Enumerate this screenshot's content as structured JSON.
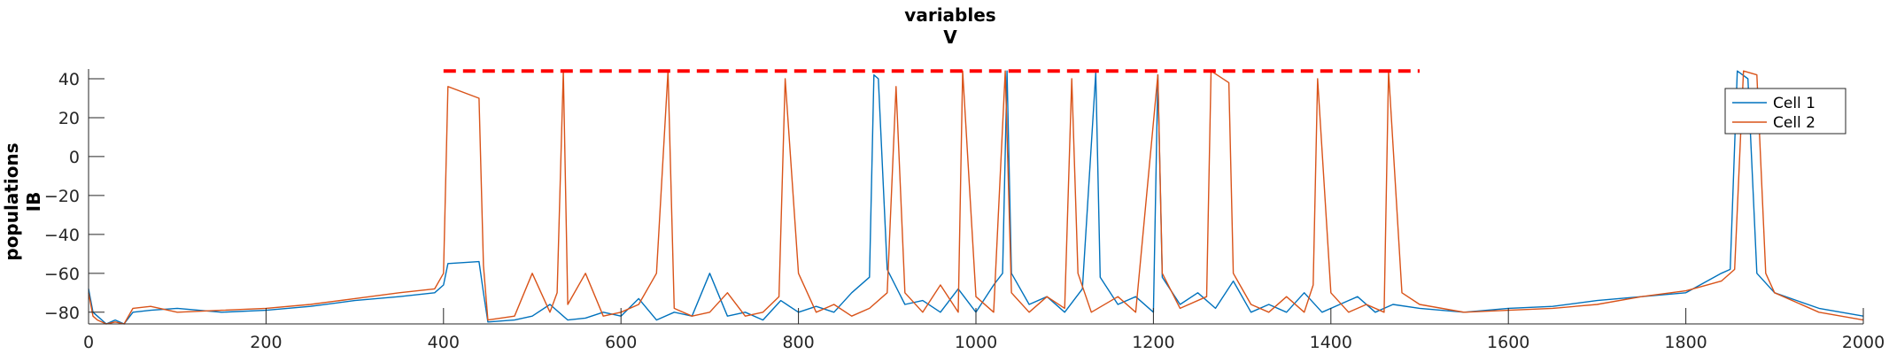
{
  "chart_data": {
    "type": "line",
    "title": [
      "variables",
      "V"
    ],
    "ylabel": [
      "populations",
      "IB"
    ],
    "xlabel": "",
    "xlim": [
      0,
      2000
    ],
    "ylim": [
      -86,
      45
    ],
    "xticks": [
      0,
      200,
      400,
      600,
      800,
      1000,
      1200,
      1400,
      1600,
      1800,
      2000
    ],
    "yticks": [
      -80,
      -60,
      -40,
      -20,
      0,
      20,
      40
    ],
    "ytick_labels": [
      "−80",
      "−60",
      "−40",
      "−20",
      "0",
      "20",
      "40"
    ],
    "legend_position": "top-right",
    "series": [
      {
        "name": "Cell 1",
        "color": "#0072BD",
        "x": [
          0,
          5,
          10,
          20,
          30,
          40,
          50,
          70,
          100,
          150,
          200,
          250,
          300,
          350,
          390,
          400,
          405,
          440,
          445,
          450,
          480,
          500,
          520,
          540,
          560,
          580,
          600,
          620,
          640,
          660,
          680,
          700,
          720,
          740,
          760,
          780,
          800,
          820,
          840,
          860,
          880,
          885,
          890,
          900,
          920,
          940,
          960,
          980,
          1000,
          1020,
          1030,
          1035,
          1040,
          1060,
          1080,
          1100,
          1120,
          1135,
          1140,
          1160,
          1180,
          1200,
          1205,
          1210,
          1230,
          1250,
          1270,
          1290,
          1310,
          1330,
          1350,
          1370,
          1390,
          1410,
          1430,
          1450,
          1470,
          1500,
          1550,
          1600,
          1650,
          1700,
          1750,
          1800,
          1840,
          1850,
          1858,
          1870,
          1880,
          1900,
          1950,
          2000
        ],
        "y": [
          -68,
          -80,
          -82,
          -86,
          -84,
          -86,
          -80,
          -79,
          -78,
          -80,
          -79,
          -77,
          -74,
          -72,
          -70,
          -66,
          -55,
          -54,
          -70,
          -85,
          -84,
          -82,
          -76,
          -84,
          -83,
          -80,
          -82,
          -73,
          -84,
          -80,
          -82,
          -60,
          -82,
          -80,
          -84,
          -74,
          -80,
          -77,
          -80,
          -70,
          -62,
          42,
          40,
          -58,
          -76,
          -74,
          -80,
          -68,
          -80,
          -66,
          -60,
          44,
          -60,
          -76,
          -72,
          -80,
          -68,
          43,
          -62,
          -76,
          -72,
          -80,
          42,
          -62,
          -76,
          -70,
          -78,
          -64,
          -80,
          -76,
          -80,
          -70,
          -80,
          -76,
          -72,
          -80,
          -76,
          -78,
          -80,
          -78,
          -77,
          -74,
          -72,
          -70,
          -60,
          -58,
          44,
          40,
          -60,
          -70,
          -78,
          -82
        ]
      },
      {
        "name": "Cell 2",
        "color": "#D95319",
        "x": [
          0,
          5,
          10,
          20,
          30,
          40,
          50,
          70,
          100,
          150,
          200,
          250,
          300,
          350,
          390,
          400,
          405,
          440,
          445,
          450,
          480,
          500,
          520,
          528,
          535,
          540,
          560,
          580,
          600,
          620,
          640,
          653,
          660,
          680,
          700,
          720,
          740,
          760,
          778,
          785,
          800,
          820,
          840,
          860,
          880,
          900,
          910,
          920,
          940,
          960,
          980,
          985,
          1000,
          1020,
          1033,
          1040,
          1060,
          1080,
          1100,
          1108,
          1115,
          1130,
          1160,
          1180,
          1205,
          1210,
          1230,
          1260,
          1265,
          1285,
          1290,
          1310,
          1330,
          1350,
          1370,
          1380,
          1385,
          1400,
          1420,
          1440,
          1460,
          1465,
          1480,
          1500,
          1550,
          1600,
          1650,
          1700,
          1750,
          1800,
          1840,
          1855,
          1865,
          1880,
          1890,
          1900,
          1950,
          2000
        ],
        "y": [
          -70,
          -82,
          -84,
          -86,
          -85,
          -86,
          -78,
          -77,
          -80,
          -79,
          -78,
          -76,
          -73,
          -70,
          -68,
          -60,
          36,
          30,
          -56,
          -84,
          -82,
          -60,
          -80,
          -70,
          44,
          -76,
          -60,
          -82,
          -80,
          -76,
          -60,
          44,
          -78,
          -82,
          -80,
          -70,
          -82,
          -80,
          -72,
          40,
          -60,
          -80,
          -76,
          -82,
          -78,
          -70,
          36,
          -70,
          -80,
          -66,
          -80,
          44,
          -72,
          -80,
          44,
          -70,
          -80,
          -72,
          -78,
          40,
          -60,
          -80,
          -72,
          -80,
          42,
          -60,
          -78,
          -72,
          44,
          38,
          -60,
          -76,
          -80,
          -72,
          -80,
          -66,
          40,
          -70,
          -80,
          -76,
          -80,
          44,
          -70,
          -76,
          -80,
          -79,
          -78,
          -76,
          -72,
          -69,
          -64,
          -58,
          44,
          42,
          -60,
          -70,
          -80,
          -84
        ]
      }
    ],
    "reference_line": {
      "y": 44,
      "x": [
        400,
        1500
      ],
      "color": "#FF0000",
      "style": "dashed"
    }
  }
}
